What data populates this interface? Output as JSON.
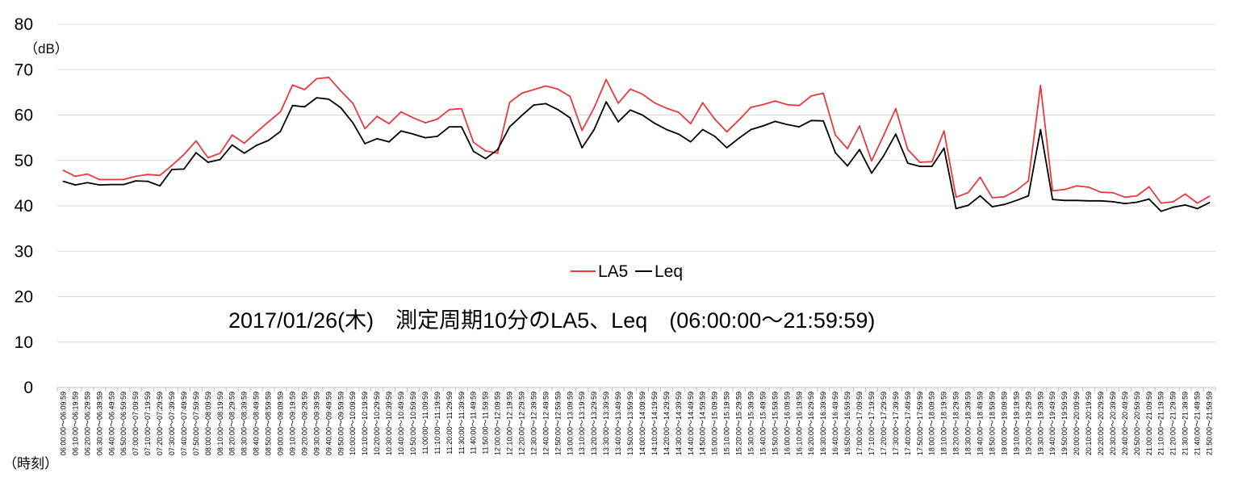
{
  "chart_data": {
    "type": "line",
    "title": "2017/01/26(木)　測定周期10分のLA5、Leq　(06:00:00～21:59:59)",
    "ylabel": "（dB）",
    "xlabel": "（時刻）",
    "ylim": [
      0,
      80
    ],
    "yticks": [
      0,
      10,
      20,
      30,
      40,
      50,
      60,
      70,
      80
    ],
    "grid": "horizontal",
    "legend_position": "center",
    "categories": [
      "06:00:00～06:09:59",
      "06:10:00～06:19:59",
      "06:20:00～06:29:59",
      "06:30:00～06:39:59",
      "06:40:00～06:49:59",
      "06:50:00～06:59:59",
      "07:00:00～07:09:59",
      "07:10:00～07:19:59",
      "07:20:00～07:29:59",
      "07:30:00～07:39:59",
      "07:40:00～07:49:59",
      "07:50:00～07:59:59",
      "08:00:00～08:09:59",
      "08:10:00～08:19:59",
      "08:20:00～08:29:59",
      "08:30:00～08:39:59",
      "08:40:00～08:49:59",
      "08:50:00～08:59:59",
      "09:00:00～09:09:59",
      "09:10:00～09:19:59",
      "09:20:00～09:29:59",
      "09:30:00～09:39:59",
      "09:40:00～09:49:59",
      "09:50:00～09:59:59",
      "10:00:00～10:09:59",
      "10:10:00～10:19:59",
      "10:20:00～10:29:59",
      "10:30:00～10:39:59",
      "10:40:00～10:49:59",
      "10:50:00～10:59:59",
      "11:00:00～11:09:59",
      "11:10:00～11:19:59",
      "11:20:00～11:29:59",
      "11:30:00～11:39:59",
      "11:40:00～11:49:59",
      "11:50:00～11:59:59",
      "12:00:00～12:09:59",
      "12:10:00～12:19:59",
      "12:20:00～12:29:59",
      "12:30:00～12:39:59",
      "12:40:00～12:49:59",
      "12:50:00～12:59:59",
      "13:00:00～13:09:59",
      "13:10:00～13:19:59",
      "13:20:00～13:29:59",
      "13:30:00～13:39:59",
      "13:40:00～13:49:59",
      "13:50:00～13:59:59",
      "14:00:00～14:09:59",
      "14:10:00～14:19:59",
      "14:20:00～14:29:59",
      "14:30:00～14:39:59",
      "14:40:00～14:49:59",
      "14:50:00～14:59:59",
      "15:00:00～15:09:59",
      "15:10:00～15:19:59",
      "15:20:00～15:29:59",
      "15:30:00～15:39:59",
      "15:40:00～15:49:59",
      "15:50:00～15:59:59",
      "16:00:00～16:09:59",
      "16:10:00～16:19:59",
      "16:20:00～16:29:59",
      "16:30:00～16:39:59",
      "16:40:00～16:49:59",
      "16:50:00～16:59:59",
      "17:00:00～17:09:59",
      "17:10:00～17:19:59",
      "17:20:00～17:29:59",
      "17:30:00～17:39:59",
      "17:40:00～17:49:59",
      "17:50:00～17:59:59",
      "18:00:00～18:09:59",
      "18:10:00～18:19:59",
      "18:20:00～18:29:59",
      "18:30:00～18:39:59",
      "18:40:00～18:49:59",
      "18:50:00～18:59:59",
      "19:00:00～19:09:59",
      "19:10:00～19:19:59",
      "19:20:00～19:29:59",
      "19:30:00～19:39:59",
      "19:40:00～19:49:59",
      "19:50:00～19:59:59",
      "20:00:00～20:09:59",
      "20:10:00～20:19:59",
      "20:20:00～20:29:59",
      "20:30:00～20:39:59",
      "20:40:00～20:49:59",
      "20:50:00～20:59:59",
      "21:00:00～21:09:59",
      "21:10:00～21:19:59",
      "21:20:00～21:29:59",
      "21:30:00～21:39:59",
      "21:40:00～21:49:59",
      "21:50:00～21:59:59"
    ],
    "series": [
      {
        "name": "LA5",
        "color": "#e8393e",
        "values": [
          47.8,
          46.5,
          47.0,
          45.8,
          45.8,
          45.8,
          46.5,
          46.9,
          46.7,
          48.9,
          51.3,
          54.3,
          50.6,
          51.6,
          55.6,
          53.8,
          56.2,
          58.5,
          60.7,
          66.6,
          65.6,
          68.0,
          68.3,
          65.3,
          62.6,
          57.0,
          59.7,
          58.1,
          60.7,
          59.4,
          58.3,
          59.1,
          61.2,
          61.4,
          54.0,
          52.1,
          51.6,
          62.8,
          64.8,
          65.6,
          66.4,
          65.7,
          64.1,
          56.6,
          61.6,
          67.8,
          62.6,
          65.7,
          64.6,
          62.7,
          61.5,
          60.6,
          58.1,
          62.7,
          59.1,
          56.3,
          58.9,
          61.7,
          62.3,
          63.1,
          62.3,
          62.1,
          64.2,
          64.8,
          55.6,
          52.6,
          57.6,
          49.9,
          55.5,
          61.4,
          52.4,
          49.6,
          49.7,
          56.5,
          41.9,
          42.9,
          46.3,
          41.8,
          42.0,
          43.4,
          45.5,
          66.5,
          43.3,
          43.6,
          44.4,
          44.1,
          43.0,
          42.9,
          41.9,
          42.2,
          44.2,
          40.6,
          40.9,
          42.6,
          40.6,
          42.1
        ]
      },
      {
        "name": "Leq",
        "color": "#000000",
        "values": [
          45.4,
          44.6,
          45.1,
          44.6,
          44.7,
          44.7,
          45.5,
          45.4,
          44.4,
          48.0,
          48.1,
          51.7,
          49.6,
          50.2,
          53.4,
          51.6,
          53.3,
          54.4,
          56.4,
          62.1,
          61.8,
          63.8,
          63.5,
          61.6,
          58.3,
          53.7,
          54.8,
          54.1,
          56.5,
          55.8,
          55.0,
          55.3,
          57.4,
          57.4,
          52.0,
          50.4,
          52.4,
          57.4,
          59.9,
          62.2,
          62.5,
          61.2,
          59.4,
          52.8,
          56.8,
          62.9,
          58.5,
          61.1,
          60.0,
          58.2,
          56.8,
          55.8,
          54.1,
          56.8,
          55.3,
          52.8,
          54.9,
          56.8,
          57.6,
          58.6,
          57.9,
          57.4,
          58.8,
          58.7,
          51.7,
          48.8,
          52.4,
          47.2,
          51.0,
          55.8,
          49.4,
          48.7,
          48.7,
          52.7,
          39.4,
          40.1,
          42.2,
          39.8,
          40.3,
          41.2,
          42.2,
          56.8,
          41.4,
          41.2,
          41.2,
          41.1,
          41.1,
          40.9,
          40.5,
          40.8,
          41.5,
          38.8,
          39.7,
          40.2,
          39.4,
          40.7
        ]
      }
    ],
    "legend": [
      "LA5",
      "Leq"
    ]
  }
}
